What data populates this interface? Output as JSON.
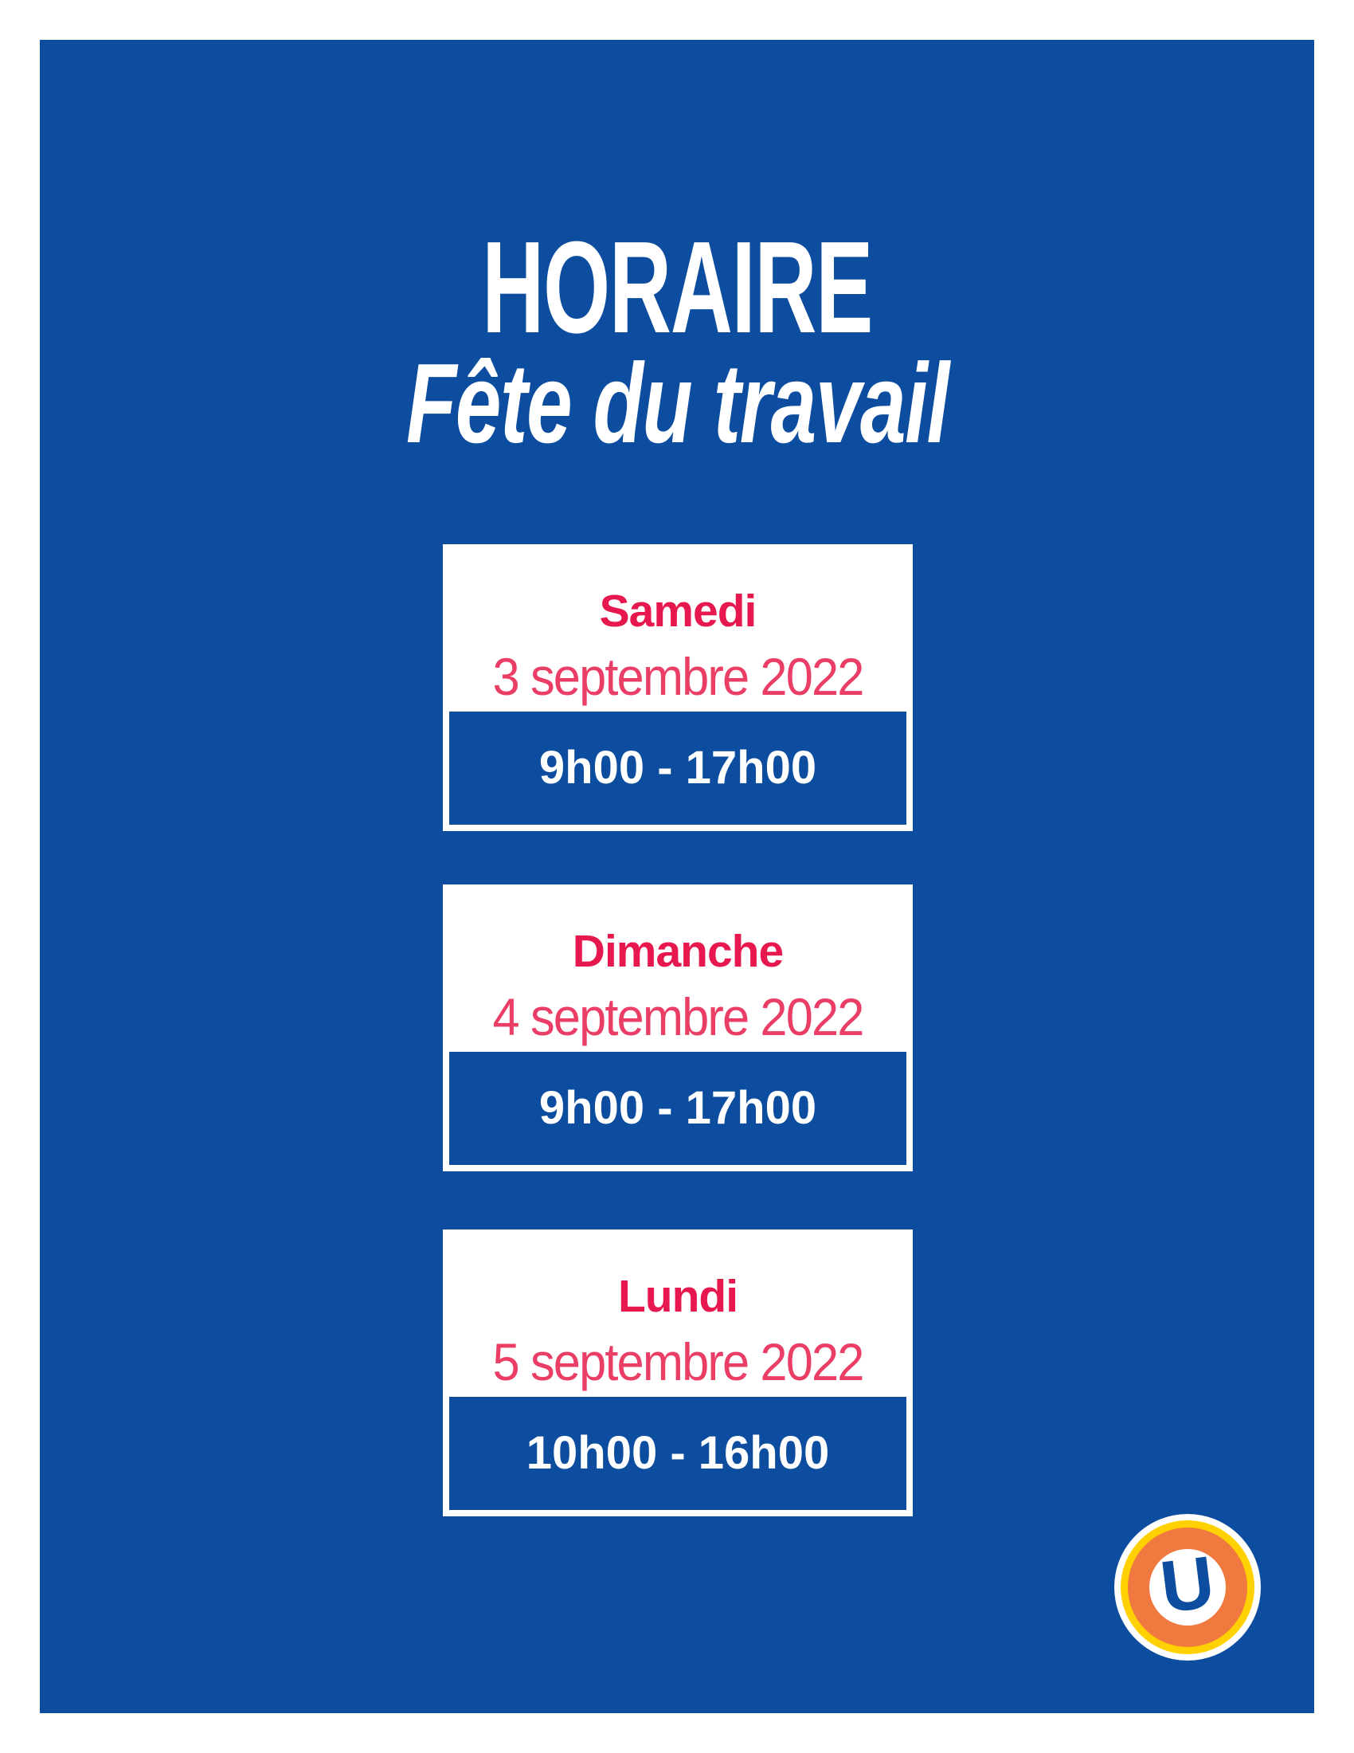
{
  "poster": {
    "title": "HORAIRE",
    "subtitle": "Fête du travail",
    "cards": [
      {
        "day": "Samedi",
        "date": "3 septembre 2022",
        "hours": "9h00 - 17h00"
      },
      {
        "day": "Dimanche",
        "date": "4 septembre 2022",
        "hours": "9h00 - 17h00"
      },
      {
        "day": "Lundi",
        "date": "5 septembre 2022",
        "hours": "10h00 - 16h00"
      }
    ],
    "logo": {
      "letter": "U"
    },
    "colors": {
      "page_background": "#FFFFFF",
      "poster_blue": "#0D4DA0",
      "day_pink": "#E7184D",
      "date_pink": "#EA3E66",
      "time_text": "#FFFFFF",
      "card_background": "#FFFFFF",
      "logo_yellow": "#FFD100",
      "logo_orange": "#F0793F"
    }
  }
}
